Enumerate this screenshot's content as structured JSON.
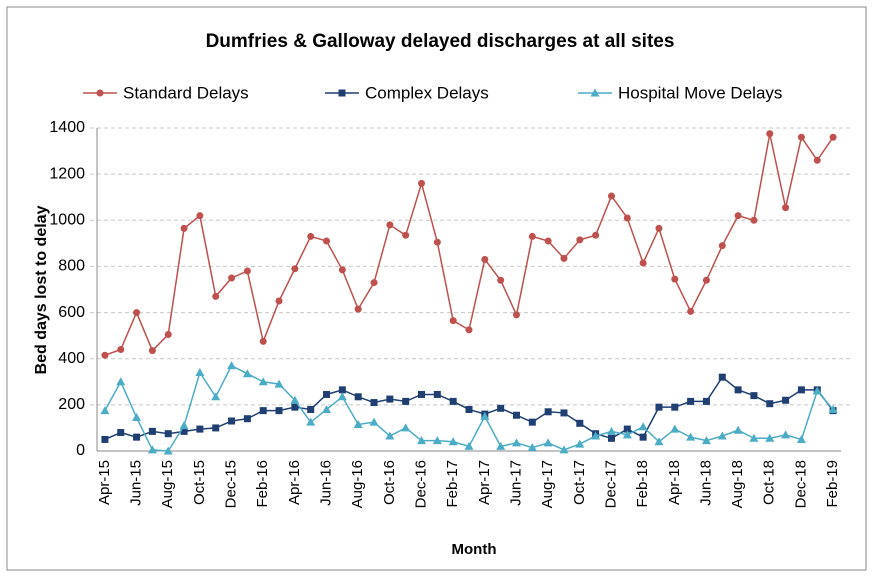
{
  "chart_data": {
    "type": "line",
    "title": "Dumfries & Galloway delayed discharges at all sites",
    "x_label": "Month",
    "y_label": "Bed days  lost to delay",
    "categories": [
      "Apr-15",
      null,
      "Jun-15",
      null,
      "Aug-15",
      null,
      "Oct-15",
      null,
      "Dec-15",
      null,
      "Feb-16",
      null,
      "Apr-16",
      null,
      "Jun-16",
      null,
      "Aug-16",
      null,
      "Oct-16",
      null,
      "Dec-16",
      null,
      "Feb-17",
      null,
      "Apr-17",
      null,
      "Jun-17",
      null,
      "Aug-17",
      null,
      "Oct-17",
      null,
      "Dec-17",
      null,
      "Feb-18",
      null,
      "Apr-18",
      null,
      "Jun-18",
      null,
      "Aug-18",
      null,
      "Oct-18",
      null,
      "Dec-18",
      null,
      "Feb-19"
    ],
    "series": [
      {
        "name": "Standard Delays",
        "color": "#c0504d",
        "marker": "circle",
        "values": [
          415,
          440,
          600,
          435,
          505,
          965,
          1020,
          670,
          750,
          780,
          475,
          650,
          790,
          930,
          910,
          785,
          615,
          730,
          980,
          935,
          1160,
          905,
          565,
          525,
          830,
          740,
          590,
          930,
          910,
          835,
          915,
          935,
          1105,
          1010,
          815,
          965,
          745,
          605,
          740,
          890,
          1020,
          1000,
          1375,
          1055,
          1360,
          1260,
          1360
        ]
      },
      {
        "name": "Complex Delays",
        "color": "#1f3f73",
        "marker": "square",
        "values": [
          50,
          80,
          60,
          85,
          75,
          85,
          95,
          100,
          130,
          140,
          175,
          175,
          190,
          180,
          245,
          265,
          235,
          210,
          225,
          215,
          245,
          245,
          215,
          180,
          160,
          185,
          155,
          125,
          170,
          165,
          120,
          75,
          55,
          95,
          60,
          190,
          190,
          215,
          215,
          320,
          265,
          240,
          205,
          220,
          265,
          265,
          175
        ]
      },
      {
        "name": "Hospital Move Delays",
        "color": "#4bacc6",
        "marker": "triangle",
        "values": [
          175,
          300,
          145,
          5,
          0,
          110,
          340,
          235,
          370,
          335,
          300,
          290,
          220,
          125,
          180,
          235,
          115,
          125,
          65,
          100,
          45,
          45,
          40,
          20,
          150,
          20,
          35,
          15,
          35,
          5,
          30,
          65,
          85,
          70,
          105,
          40,
          95,
          60,
          45,
          65,
          90,
          55,
          55,
          70,
          50,
          260,
          180
        ]
      }
    ],
    "ylim": [
      0,
      1400
    ],
    "yticks": [
      0,
      200,
      400,
      600,
      800,
      1000,
      1200,
      1400
    ],
    "grid": true
  }
}
